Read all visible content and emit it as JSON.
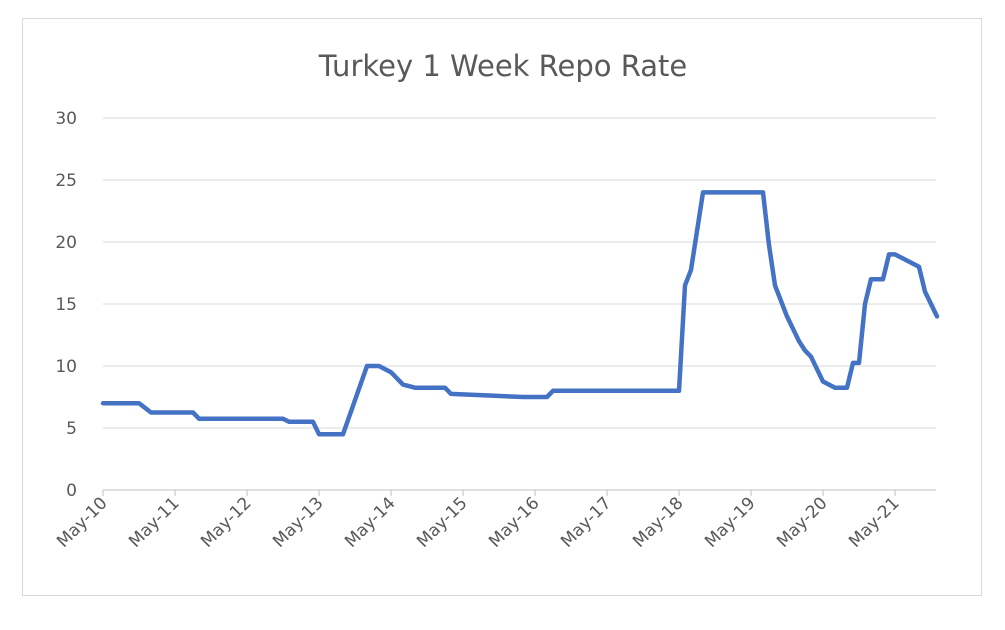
{
  "chart_data": {
    "type": "line",
    "title": "Turkey 1 Week Repo Rate",
    "xlabel": "",
    "ylabel": "",
    "ylim": [
      0,
      30
    ],
    "y_ticks": [
      "0",
      "5",
      "10",
      "15",
      "20",
      "25",
      "30"
    ],
    "x_ticks": [
      "May-10",
      "May-11",
      "May-12",
      "May-13",
      "May-14",
      "May-15",
      "May-16",
      "May-17",
      "May-18",
      "May-19",
      "May-20",
      "May-21"
    ],
    "grid": true,
    "legend": "none",
    "line_color": "#4472c4",
    "series": [
      {
        "x": [
          "2010-05",
          "2010-11",
          "2011-01",
          "2011-08",
          "2011-09",
          "2012-11",
          "2012-12",
          "2013-04",
          "2013-05",
          "2013-09",
          "2014-01",
          "2014-03",
          "2014-05",
          "2014-07",
          "2014-09",
          "2015-02",
          "2015-03",
          "2016-03",
          "2016-04",
          "2016-07",
          "2016-08",
          "2018-05",
          "2018-06",
          "2018-07",
          "2018-09",
          "2019-07",
          "2019-08",
          "2019-09",
          "2019-11",
          "2020-01",
          "2020-02",
          "2020-03",
          "2020-04",
          "2020-05",
          "2020-07",
          "2020-09",
          "2020-10",
          "2020-11",
          "2020-12",
          "2021-01",
          "2021-03",
          "2021-04",
          "2021-05",
          "2021-09",
          "2021-10",
          "2021-11",
          "2021-12"
        ],
        "y": [
          7,
          7,
          6.25,
          6.25,
          5.75,
          5.75,
          5.5,
          5.5,
          4.5,
          4.5,
          10,
          10,
          9.5,
          8.5,
          8.25,
          8.25,
          7.75,
          7.5,
          7.5,
          7.5,
          8,
          8,
          16.5,
          17.75,
          24,
          24,
          19.75,
          16.5,
          14,
          12,
          11.25,
          10.75,
          9.75,
          8.75,
          8.25,
          8.25,
          10.25,
          10.25,
          15,
          17,
          17,
          19,
          19,
          18,
          16,
          15,
          14
        ]
      }
    ]
  }
}
